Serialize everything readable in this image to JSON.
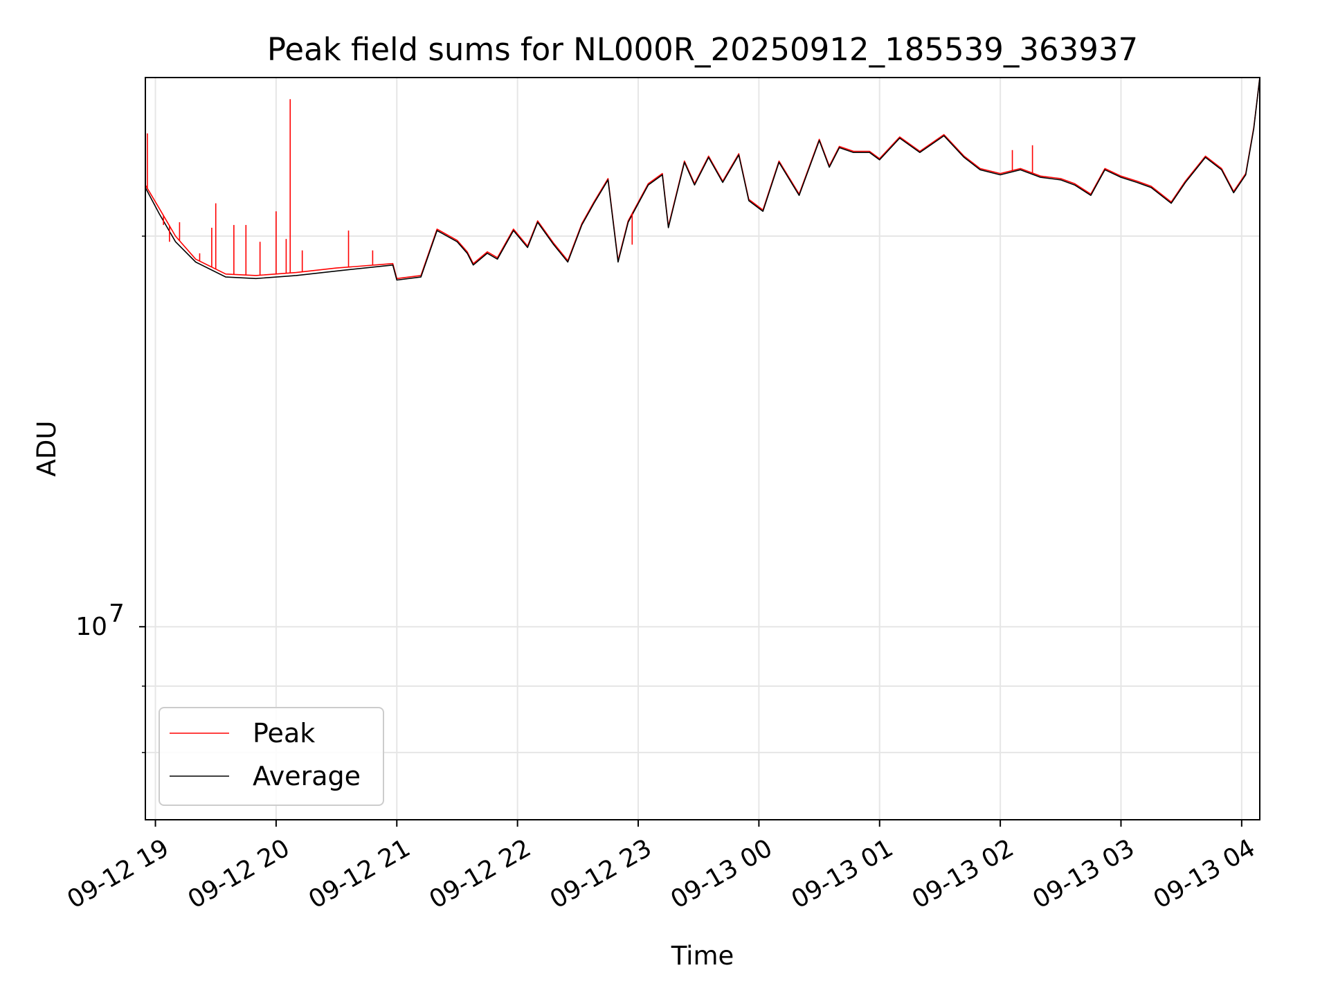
{
  "chart_data": {
    "type": "line",
    "title": "Peak field sums for NL000R_20250912_185539_363937",
    "xlabel": "Time",
    "ylabel": "ADU",
    "yscale": "log",
    "ylim": [
      7100000,
      26500000
    ],
    "xlim": [
      "2025-09-12 18:55",
      "2025-09-13 04:09"
    ],
    "grid": true,
    "legend_position": "lower-left",
    "x_ticks": [
      "09-12 19",
      "09-12 20",
      "09-12 21",
      "09-12 22",
      "09-12 23",
      "09-13 00",
      "09-13 01",
      "09-13 02",
      "09-13 03",
      "09-13 04"
    ],
    "y_ticks": [
      {
        "label_base": "10",
        "label_exp": "7",
        "value": 10000000
      }
    ],
    "colors": {
      "Peak": "#ff0000",
      "Average": "#000000",
      "grid": "#e6e6e6"
    },
    "series": [
      {
        "name": "Average",
        "color": "#000000",
        "x": [
          "2025-09-12 18:55",
          "2025-09-12 19:02",
          "2025-09-12 19:10",
          "2025-09-12 19:20",
          "2025-09-12 19:35",
          "2025-09-12 19:50",
          "2025-09-12 20:10",
          "2025-09-12 20:30",
          "2025-09-12 20:58",
          "2025-09-12 21:00",
          "2025-09-12 21:12",
          "2025-09-12 21:20",
          "2025-09-12 21:30",
          "2025-09-12 21:35",
          "2025-09-12 21:38",
          "2025-09-12 21:45",
          "2025-09-12 21:50",
          "2025-09-12 21:58",
          "2025-09-12 22:05",
          "2025-09-12 22:10",
          "2025-09-12 22:18",
          "2025-09-12 22:25",
          "2025-09-12 22:32",
          "2025-09-12 22:38",
          "2025-09-12 22:45",
          "2025-09-12 22:50",
          "2025-09-12 22:55",
          "2025-09-12 23:05",
          "2025-09-12 23:12",
          "2025-09-12 23:15",
          "2025-09-12 23:23",
          "2025-09-12 23:28",
          "2025-09-12 23:35",
          "2025-09-12 23:42",
          "2025-09-12 23:50",
          "2025-09-12 23:55",
          "2025-09-13 00:02",
          "2025-09-13 00:10",
          "2025-09-13 00:20",
          "2025-09-13 00:30",
          "2025-09-13 00:35",
          "2025-09-13 00:40",
          "2025-09-13 00:47",
          "2025-09-13 00:55",
          "2025-09-13 01:00",
          "2025-09-13 01:10",
          "2025-09-13 01:20",
          "2025-09-13 01:32",
          "2025-09-13 01:42",
          "2025-09-13 01:50",
          "2025-09-13 02:00",
          "2025-09-13 02:10",
          "2025-09-13 02:20",
          "2025-09-13 02:30",
          "2025-09-13 02:37",
          "2025-09-13 02:45",
          "2025-09-13 02:52",
          "2025-09-13 03:00",
          "2025-09-13 03:08",
          "2025-09-13 03:15",
          "2025-09-13 03:25",
          "2025-09-13 03:32",
          "2025-09-13 03:42",
          "2025-09-13 03:50",
          "2025-09-13 03:56",
          "2025-09-13 04:02",
          "2025-09-13 04:06",
          "2025-09-13 04:09"
        ],
        "y": [
          21800000,
          20800000,
          19800000,
          19100000,
          18600000,
          18550000,
          18650000,
          18800000,
          19000000,
          18500000,
          18600000,
          20200000,
          19800000,
          19400000,
          19000000,
          19400000,
          19200000,
          20200000,
          19600000,
          20500000,
          19700000,
          19100000,
          20400000,
          21200000,
          22100000,
          19100000,
          20500000,
          21900000,
          22300000,
          20300000,
          22800000,
          21900000,
          23000000,
          22000000,
          23100000,
          21300000,
          20900000,
          22800000,
          21500000,
          23700000,
          22600000,
          23400000,
          23200000,
          23200000,
          22900000,
          23800000,
          23200000,
          23900000,
          23000000,
          22500000,
          22300000,
          22500000,
          22200000,
          22100000,
          21900000,
          21500000,
          22500000,
          22200000,
          22000000,
          21800000,
          21200000,
          22000000,
          23000000,
          22500000,
          21600000,
          22300000,
          24200000,
          26500000
        ]
      },
      {
        "name": "Peak",
        "color": "#ff0000",
        "x": [
          "2025-09-12 18:55",
          "2025-09-12 19:02",
          "2025-09-12 19:10",
          "2025-09-12 19:20",
          "2025-09-12 19:35",
          "2025-09-12 19:50",
          "2025-09-12 20:10",
          "2025-09-12 20:30",
          "2025-09-12 20:58",
          "2025-09-12 21:00",
          "2025-09-12 21:12",
          "2025-09-12 21:20",
          "2025-09-12 21:30",
          "2025-09-12 21:35",
          "2025-09-12 21:38",
          "2025-09-12 21:45",
          "2025-09-12 21:50",
          "2025-09-12 21:58",
          "2025-09-12 22:05",
          "2025-09-12 22:10",
          "2025-09-12 22:18",
          "2025-09-12 22:25",
          "2025-09-12 22:32",
          "2025-09-12 22:38",
          "2025-09-12 22:45",
          "2025-09-12 22:50",
          "2025-09-12 22:55",
          "2025-09-12 23:05",
          "2025-09-12 23:12",
          "2025-09-12 23:15",
          "2025-09-12 23:23",
          "2025-09-12 23:28",
          "2025-09-12 23:35",
          "2025-09-12 23:42",
          "2025-09-12 23:50",
          "2025-09-12 23:55",
          "2025-09-13 00:02",
          "2025-09-13 00:10",
          "2025-09-13 00:20",
          "2025-09-13 00:30",
          "2025-09-13 00:35",
          "2025-09-13 00:40",
          "2025-09-13 00:47",
          "2025-09-13 00:55",
          "2025-09-13 01:00",
          "2025-09-13 01:10",
          "2025-09-13 01:20",
          "2025-09-13 01:32",
          "2025-09-13 01:42",
          "2025-09-13 01:50",
          "2025-09-13 02:00",
          "2025-09-13 02:10",
          "2025-09-13 02:20",
          "2025-09-13 02:30",
          "2025-09-13 02:37",
          "2025-09-13 02:45",
          "2025-09-13 02:52",
          "2025-09-13 03:00",
          "2025-09-13 03:08",
          "2025-09-13 03:15",
          "2025-09-13 03:25",
          "2025-09-13 03:32",
          "2025-09-13 03:42",
          "2025-09-13 03:50",
          "2025-09-13 03:56",
          "2025-09-13 04:02",
          "2025-09-13 04:06",
          "2025-09-13 04:09"
        ],
        "y": [
          21900000,
          21000000,
          20000000,
          19200000,
          18700000,
          18650000,
          18750000,
          18900000,
          19050000,
          18550000,
          18650000,
          20250000,
          19850000,
          19450000,
          19050000,
          19450000,
          19250000,
          20250000,
          19650000,
          20550000,
          19750000,
          19150000,
          20450000,
          21250000,
          22150000,
          19150000,
          20550000,
          21950000,
          22350000,
          20350000,
          22850000,
          21950000,
          23050000,
          22050000,
          23150000,
          21350000,
          20950000,
          22850000,
          21550000,
          23750000,
          22650000,
          23450000,
          23250000,
          23250000,
          22950000,
          23850000,
          23250000,
          23950000,
          23050000,
          22550000,
          22350000,
          22550000,
          22250000,
          22150000,
          21950000,
          21550000,
          22550000,
          22250000,
          22050000,
          21850000,
          21250000,
          22050000,
          23050000,
          22550000,
          21650000,
          22350000,
          24250000,
          26500000
        ],
        "spikes": [
          {
            "x": "2025-09-12 18:56",
            "y": 24000000
          },
          {
            "x": "2025-09-12 19:04",
            "y": 20400000
          },
          {
            "x": "2025-09-12 19:07",
            "y": 19800000
          },
          {
            "x": "2025-09-12 19:12",
            "y": 20500000
          },
          {
            "x": "2025-09-12 19:22",
            "y": 19400000
          },
          {
            "x": "2025-09-12 19:28",
            "y": 20300000
          },
          {
            "x": "2025-09-12 19:30",
            "y": 21200000
          },
          {
            "x": "2025-09-12 19:39",
            "y": 20400000
          },
          {
            "x": "2025-09-12 19:45",
            "y": 20400000
          },
          {
            "x": "2025-09-12 19:52",
            "y": 19800000
          },
          {
            "x": "2025-09-12 20:00",
            "y": 20900000
          },
          {
            "x": "2025-09-12 20:05",
            "y": 19900000
          },
          {
            "x": "2025-09-12 20:07",
            "y": 25500000
          },
          {
            "x": "2025-09-12 20:13",
            "y": 19500000
          },
          {
            "x": "2025-09-12 20:36",
            "y": 20200000
          },
          {
            "x": "2025-09-12 20:48",
            "y": 19500000
          },
          {
            "x": "2025-09-12 22:57",
            "y": 19700000
          },
          {
            "x": "2025-09-13 02:06",
            "y": 23300000
          },
          {
            "x": "2025-09-13 02:16",
            "y": 23500000
          }
        ]
      }
    ]
  }
}
